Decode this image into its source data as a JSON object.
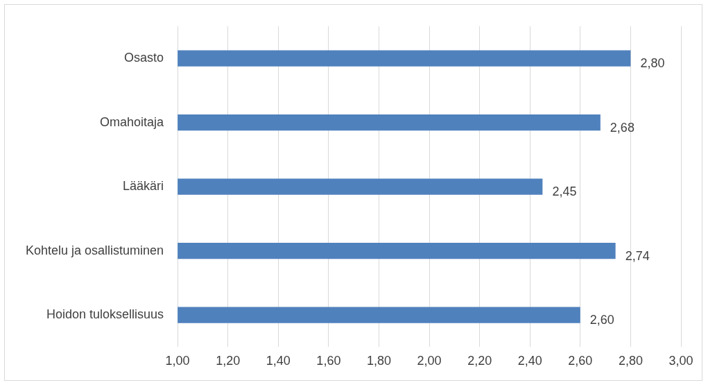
{
  "chart_data": {
    "type": "bar",
    "orientation": "horizontal",
    "categories": [
      "Osasto",
      "Omahoitaja",
      "Lääkäri",
      "Kohtelu ja osallistuminen",
      "Hoidon tuloksellisuus"
    ],
    "values": [
      2.8,
      2.68,
      2.45,
      2.74,
      2.6
    ],
    "value_labels": [
      "2,80",
      "2,68",
      "2,45",
      "2,74",
      "2,60"
    ],
    "color": "#4f81bd",
    "xlim": [
      1,
      3
    ],
    "xticks": [
      {
        "value": 1,
        "label": "1,00"
      },
      {
        "value": 1.2,
        "label": "1,20"
      },
      {
        "value": 1.4,
        "label": "1,40"
      },
      {
        "value": 1.6,
        "label": "1,60"
      },
      {
        "value": 1.8,
        "label": "1,80"
      },
      {
        "value": 2,
        "label": "2,00"
      },
      {
        "value": 2.2,
        "label": "2,20"
      },
      {
        "value": 2.4,
        "label": "2,40"
      },
      {
        "value": 2.6,
        "label": "2,60"
      },
      {
        "value": 2.8,
        "label": "2,80"
      },
      {
        "value": 3,
        "label": "3,00"
      }
    ],
    "grid": "x",
    "legend": false
  }
}
